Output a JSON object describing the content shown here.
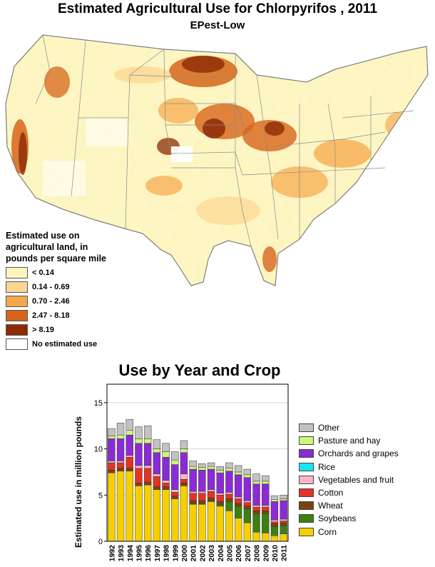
{
  "map": {
    "title": "Estimated Agricultural Use for Chlorpyrifos , 2011",
    "subtitle": "EPest-Low",
    "legend": {
      "title": "Estimated use on agricultural land, in pounds per square mile",
      "items": [
        {
          "label": "< 0.14",
          "color": "#fdf5c0"
        },
        {
          "label": "0.14 - 0.69",
          "color": "#fcd692"
        },
        {
          "label": "0.70 - 2.46",
          "color": "#f5a84b"
        },
        {
          "label": "2.47 - 8.18",
          "color": "#d6651a"
        },
        {
          "label": "> 8.19",
          "color": "#8c2b06"
        },
        {
          "label": "No estimated use",
          "color": "#ffffff"
        }
      ]
    }
  },
  "chart_data": {
    "type": "bar",
    "stacked": true,
    "title": "Use by Year and Crop",
    "xlabel": "",
    "ylabel": "Estimated use in million pounds",
    "ylim": [
      0,
      17
    ],
    "yticks": [
      0,
      5,
      10,
      15
    ],
    "grid": true,
    "legend_position": "right",
    "categories": [
      "1992",
      "1993",
      "1994",
      "1995",
      "1996",
      "1997",
      "1998",
      "1999",
      "2000",
      "2001",
      "2002",
      "2003",
      "2004",
      "2005",
      "2006",
      "2007",
      "2008",
      "2009",
      "2010",
      "2011"
    ],
    "series": [
      {
        "name": "Corn",
        "color": "#f7cf00",
        "values": [
          7.4,
          7.6,
          7.6,
          6.0,
          6.1,
          5.6,
          5.6,
          4.6,
          6.0,
          4.0,
          4.0,
          4.3,
          3.8,
          3.3,
          2.5,
          2.0,
          1.0,
          0.9,
          0.6,
          0.8
        ]
      },
      {
        "name": "Soybeans",
        "color": "#3d7f12",
        "values": [
          0.0,
          0.0,
          0.0,
          0.0,
          0.0,
          0.0,
          0.0,
          0.0,
          0.0,
          0.1,
          0.1,
          0.1,
          0.2,
          1.0,
          1.3,
          1.5,
          2.0,
          2.1,
          1.0,
          0.9
        ]
      },
      {
        "name": "Wheat",
        "color": "#7b4310",
        "values": [
          0.3,
          0.3,
          0.3,
          0.3,
          0.3,
          0.3,
          0.3,
          0.3,
          0.3,
          0.3,
          0.3,
          0.3,
          0.3,
          0.3,
          0.3,
          0.3,
          0.3,
          0.3,
          0.3,
          0.3
        ]
      },
      {
        "name": "Cotton",
        "color": "#e53226",
        "values": [
          0.8,
          0.6,
          1.2,
          1.6,
          1.5,
          1.1,
          0.4,
          0.4,
          0.4,
          0.8,
          0.8,
          0.7,
          0.7,
          0.5,
          0.5,
          0.4,
          0.4,
          0.4,
          0.2,
          0.2
        ]
      },
      {
        "name": "Vegetables and fruit",
        "color": "#f7b7c9",
        "values": [
          0.2,
          0.2,
          0.2,
          0.3,
          0.3,
          0.3,
          0.3,
          0.3,
          0.6,
          0.2,
          0.2,
          0.2,
          0.2,
          0.2,
          0.2,
          0.2,
          0.2,
          0.2,
          0.2,
          0.2
        ]
      },
      {
        "name": "Rice",
        "color": "#14e6ef",
        "values": [
          0.0,
          0.0,
          0.0,
          0.0,
          0.0,
          0.0,
          0.0,
          0.0,
          0.0,
          0.0,
          0.0,
          0.0,
          0.0,
          0.0,
          0.0,
          0.0,
          0.0,
          0.0,
          0.0,
          0.0
        ]
      },
      {
        "name": "Orchards and grapes",
        "color": "#8a2bd6",
        "values": [
          2.4,
          2.4,
          2.2,
          2.4,
          2.4,
          2.3,
          2.5,
          2.7,
          2.3,
          2.4,
          2.3,
          2.2,
          2.2,
          2.3,
          2.4,
          2.5,
          2.3,
          2.3,
          2.0,
          2.0
        ]
      },
      {
        "name": "Pasture and hay",
        "color": "#cdf77a",
        "values": [
          0.3,
          0.4,
          0.5,
          0.5,
          0.5,
          0.4,
          0.6,
          0.5,
          0.4,
          0.3,
          0.3,
          0.3,
          0.3,
          0.3,
          0.3,
          0.3,
          0.3,
          0.3,
          0.2,
          0.2
        ]
      },
      {
        "name": "Other",
        "color": "#c2c2c2",
        "values": [
          0.8,
          1.3,
          1.2,
          1.3,
          1.4,
          1.0,
          0.9,
          0.9,
          0.9,
          0.6,
          0.4,
          0.4,
          0.4,
          0.6,
          0.7,
          0.6,
          0.8,
          0.6,
          0.4,
          0.4
        ]
      }
    ]
  },
  "crop_legend_order": [
    "Other",
    "Pasture and hay",
    "Orchards and grapes",
    "Rice",
    "Vegetables and fruit",
    "Cotton",
    "Wheat",
    "Soybeans",
    "Corn"
  ]
}
